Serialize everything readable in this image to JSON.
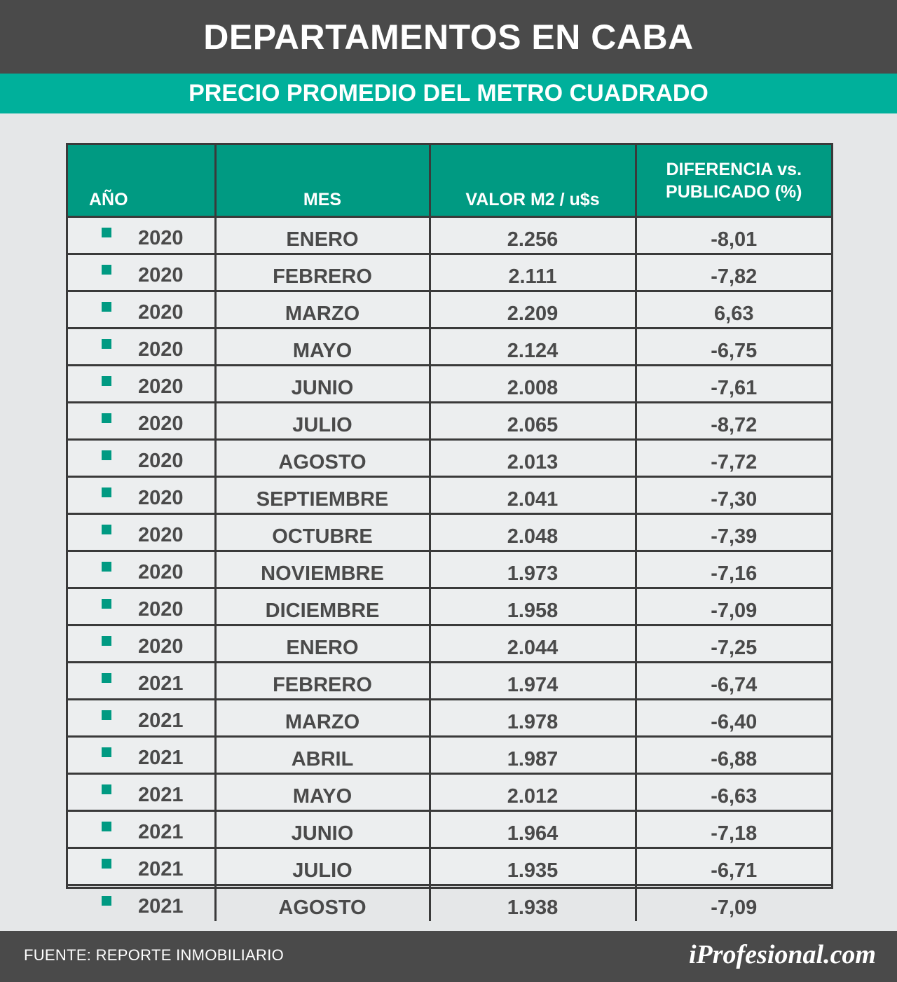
{
  "header": {
    "title": "DEPARTAMENTOS EN CABA",
    "subtitle": "PRECIO PROMEDIO DEL METRO CUADRADO"
  },
  "table": {
    "columns": [
      "AÑO",
      "MES",
      "VALOR M2 / u$s",
      "DIFERENCIA vs. PUBLICADO (%)"
    ],
    "rows": [
      {
        "anio": "2020",
        "mes": "ENERO",
        "valor": "2.256",
        "dif": "-8,01"
      },
      {
        "anio": "2020",
        "mes": "FEBRERO",
        "valor": "2.111",
        "dif": "-7,82"
      },
      {
        "anio": "2020",
        "mes": "MARZO",
        "valor": "2.209",
        "dif": "6,63"
      },
      {
        "anio": "2020",
        "mes": "MAYO",
        "valor": "2.124",
        "dif": "-6,75"
      },
      {
        "anio": "2020",
        "mes": "JUNIO",
        "valor": "2.008",
        "dif": "-7,61"
      },
      {
        "anio": "2020",
        "mes": "JULIO",
        "valor": "2.065",
        "dif": "-8,72"
      },
      {
        "anio": "2020",
        "mes": "AGOSTO",
        "valor": "2.013",
        "dif": "-7,72"
      },
      {
        "anio": "2020",
        "mes": "SEPTIEMBRE",
        "valor": "2.041",
        "dif": "-7,30"
      },
      {
        "anio": "2020",
        "mes": "OCTUBRE",
        "valor": "2.048",
        "dif": "-7,39"
      },
      {
        "anio": "2020",
        "mes": "NOVIEMBRE",
        "valor": "1.973",
        "dif": "-7,16"
      },
      {
        "anio": "2020",
        "mes": "DICIEMBRE",
        "valor": "1.958",
        "dif": "-7,09"
      },
      {
        "anio": "2020",
        "mes": "ENERO",
        "valor": "2.044",
        "dif": "-7,25"
      },
      {
        "anio": "2021",
        "mes": "FEBRERO",
        "valor": "1.974",
        "dif": "-6,74"
      },
      {
        "anio": "2021",
        "mes": "MARZO",
        "valor": "1.978",
        "dif": "-6,40"
      },
      {
        "anio": "2021",
        "mes": "ABRIL",
        "valor": "1.987",
        "dif": "-6,88"
      },
      {
        "anio": "2021",
        "mes": "MAYO",
        "valor": "2.012",
        "dif": "-6,63"
      },
      {
        "anio": "2021",
        "mes": "JUNIO",
        "valor": "1.964",
        "dif": "-7,18"
      },
      {
        "anio": "2021",
        "mes": "JULIO",
        "valor": "1.935",
        "dif": "-6,71"
      },
      {
        "anio": "2021",
        "mes": "AGOSTO",
        "valor": "1.938",
        "dif": "-7,09"
      }
    ]
  },
  "footer": {
    "source": "FUENTE: REPORTE INMOBILIARIO",
    "logo": "iProfesional.com"
  },
  "colors": {
    "dark": "#4a4a4a",
    "accent": "#00b09b",
    "header_cell": "#009a82",
    "background": "#e5e7e8"
  }
}
